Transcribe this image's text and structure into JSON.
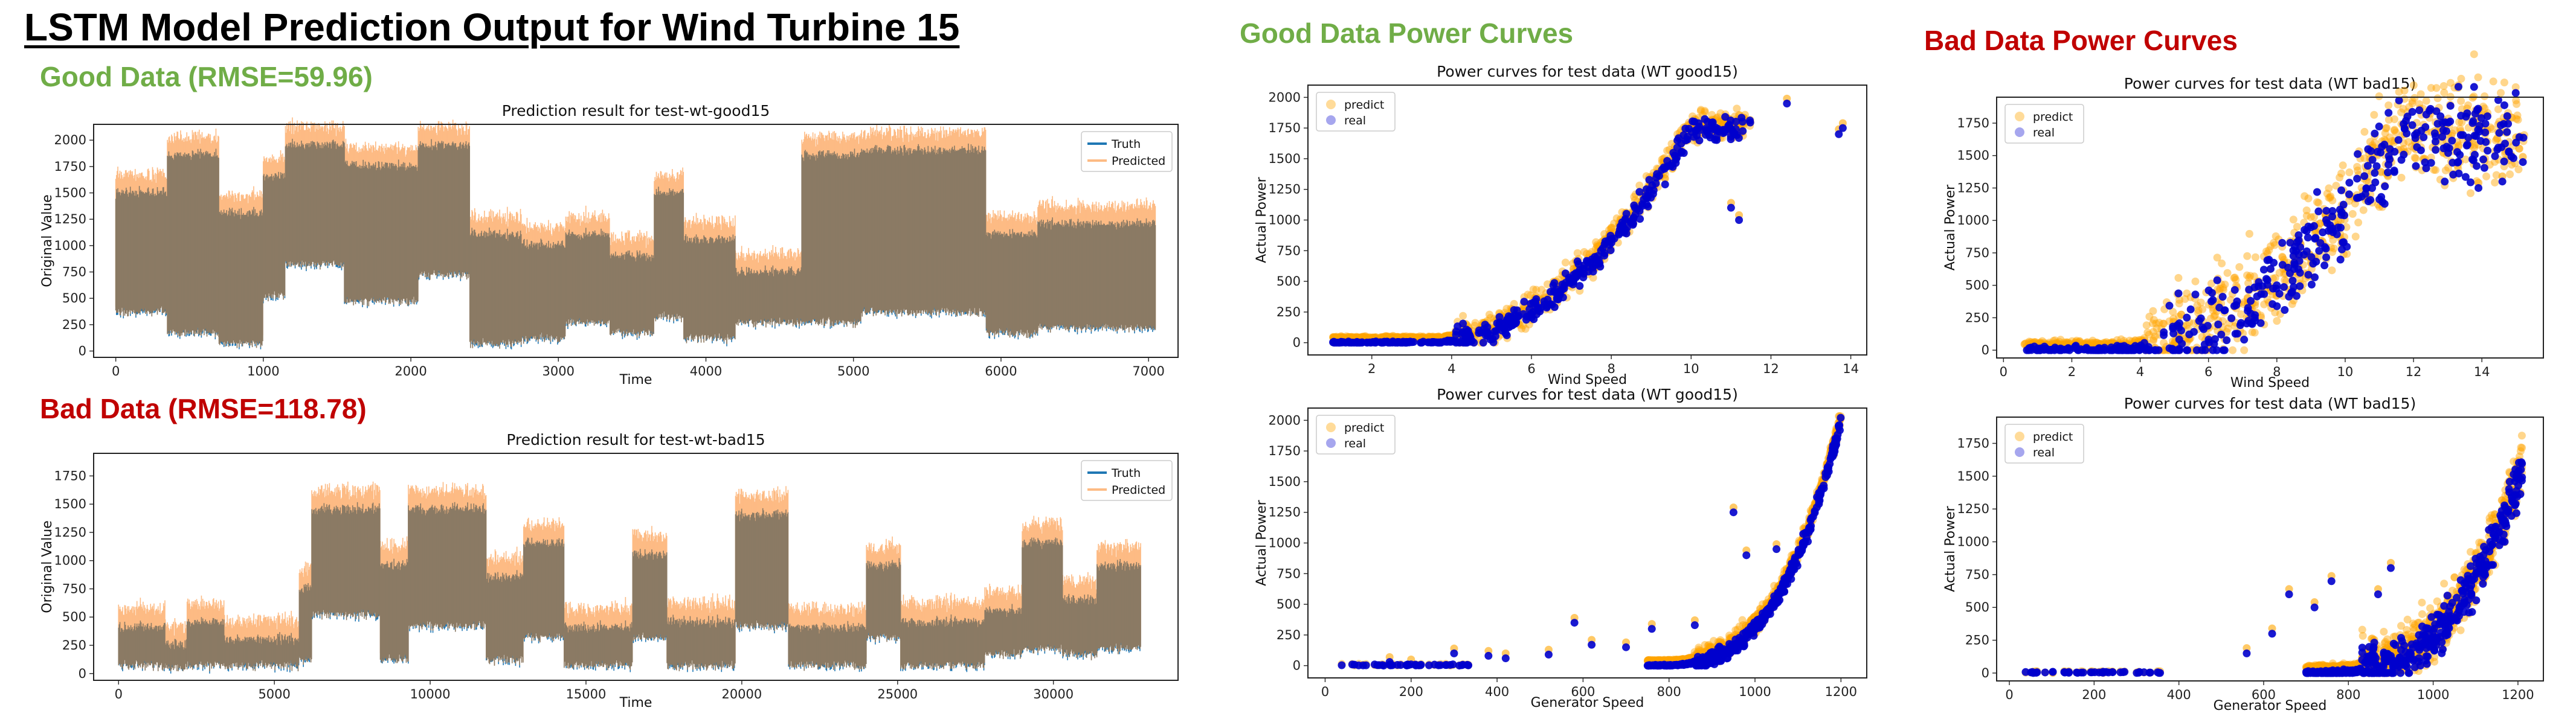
{
  "page": {
    "title": "LSTM Model Prediction Output for Wind Turbine 15",
    "good_label": "Good Data (RMSE=59.96)",
    "bad_label": "Bad Data (RMSE=118.78)",
    "good_curves_label": "Good Data Power Curves",
    "bad_curves_label": "Bad Data Power Curves"
  },
  "colors": {
    "good_green": "#70AD47",
    "bad_red": "#C00000",
    "truth": "#1f77b4",
    "predicted": "#ff7f0e",
    "predict_scatter": "#FFA500",
    "real_scatter": "#0000CD",
    "overlap": "#8B7A64"
  },
  "chart_data": [
    {
      "id": "ts_good",
      "type": "line",
      "title": "Prediction result for test-wt-good15",
      "xlabel": "Time",
      "ylabel": "Original Value",
      "xlim": [
        -150,
        7200
      ],
      "ylim": [
        -60,
        2150
      ],
      "xticks": [
        0,
        1000,
        2000,
        3000,
        4000,
        5000,
        6000,
        7000
      ],
      "yticks": [
        0,
        250,
        500,
        750,
        1000,
        1250,
        1500,
        1750,
        2000
      ],
      "legend": [
        "Truth",
        "Predicted"
      ],
      "legend_position": "top-right",
      "x_range": [
        0,
        7050
      ],
      "segments": [
        {
          "x": [
            0,
            350
          ],
          "low": 350,
          "high": 1550
        },
        {
          "x": [
            350,
            700
          ],
          "low": 150,
          "high": 1900
        },
        {
          "x": [
            700,
            1000
          ],
          "low": 50,
          "high": 1350
        },
        {
          "x": [
            1000,
            1150
          ],
          "low": 500,
          "high": 1700
        },
        {
          "x": [
            1150,
            1550
          ],
          "low": 800,
          "high": 2000
        },
        {
          "x": [
            1550,
            2050
          ],
          "low": 450,
          "high": 1800
        },
        {
          "x": [
            2050,
            2400
          ],
          "low": 700,
          "high": 2000
        },
        {
          "x": [
            2400,
            2750
          ],
          "low": 50,
          "high": 1150
        },
        {
          "x": [
            2750,
            3050
          ],
          "low": 100,
          "high": 1050
        },
        {
          "x": [
            3050,
            3350
          ],
          "low": 250,
          "high": 1150
        },
        {
          "x": [
            3350,
            3650
          ],
          "low": 150,
          "high": 950
        },
        {
          "x": [
            3650,
            3850
          ],
          "low": 300,
          "high": 1550
        },
        {
          "x": [
            3850,
            4200
          ],
          "low": 100,
          "high": 1100
        },
        {
          "x": [
            4200,
            4650
          ],
          "low": 250,
          "high": 800
        },
        {
          "x": [
            4650,
            5050
          ],
          "low": 250,
          "high": 1900
        },
        {
          "x": [
            5050,
            5900
          ],
          "low": 350,
          "high": 1950
        },
        {
          "x": [
            5900,
            6250
          ],
          "low": 150,
          "high": 1150
        },
        {
          "x": [
            6250,
            6750
          ],
          "low": 200,
          "high": 1250
        },
        {
          "x": [
            6750,
            7050
          ],
          "low": 200,
          "high": 1250
        }
      ]
    },
    {
      "id": "ts_bad",
      "type": "line",
      "title": "Prediction result for test-wt-bad15",
      "xlabel": "Time",
      "ylabel": "Original Value",
      "xlim": [
        -800,
        34000
      ],
      "ylim": [
        -60,
        1950
      ],
      "xticks": [
        0,
        5000,
        10000,
        15000,
        20000,
        25000,
        30000
      ],
      "yticks": [
        0,
        250,
        500,
        750,
        1000,
        1250,
        1500,
        1750
      ],
      "legend": [
        "Truth",
        "Predicted"
      ],
      "legend_position": "top-right",
      "x_range": [
        0,
        32800
      ],
      "segments": [
        {
          "x": [
            0,
            1500
          ],
          "low": 50,
          "high": 450
        },
        {
          "x": [
            1500,
            2200
          ],
          "low": 30,
          "high": 300
        },
        {
          "x": [
            2200,
            3400
          ],
          "low": 50,
          "high": 500
        },
        {
          "x": [
            3400,
            5800
          ],
          "low": 50,
          "high": 350
        },
        {
          "x": [
            5800,
            6200
          ],
          "low": 100,
          "high": 800
        },
        {
          "x": [
            6200,
            8400
          ],
          "low": 500,
          "high": 1500
        },
        {
          "x": [
            8400,
            9300
          ],
          "low": 100,
          "high": 1000
        },
        {
          "x": [
            9300,
            11800
          ],
          "low": 400,
          "high": 1500
        },
        {
          "x": [
            11800,
            13000
          ],
          "low": 100,
          "high": 900
        },
        {
          "x": [
            13000,
            14300
          ],
          "low": 300,
          "high": 1200
        },
        {
          "x": [
            14300,
            16500
          ],
          "low": 50,
          "high": 450
        },
        {
          "x": [
            16500,
            17600
          ],
          "low": 300,
          "high": 1100
        },
        {
          "x": [
            17600,
            19800
          ],
          "low": 50,
          "high": 500
        },
        {
          "x": [
            19800,
            21500
          ],
          "low": 400,
          "high": 1450
        },
        {
          "x": [
            21500,
            24000
          ],
          "low": 50,
          "high": 450
        },
        {
          "x": [
            24000,
            25100
          ],
          "low": 300,
          "high": 1000
        },
        {
          "x": [
            25100,
            27800
          ],
          "low": 50,
          "high": 500
        },
        {
          "x": [
            27800,
            29000
          ],
          "low": 150,
          "high": 600
        },
        {
          "x": [
            29000,
            30300
          ],
          "low": 200,
          "high": 1200
        },
        {
          "x": [
            30300,
            31400
          ],
          "low": 150,
          "high": 700
        },
        {
          "x": [
            31400,
            32800
          ],
          "low": 200,
          "high": 1000
        }
      ]
    },
    {
      "id": "pc_good_ws",
      "type": "scatter",
      "title": "Power curves for test data (WT good15)",
      "xlabel": "Wind Speed",
      "ylabel": "Actual Power",
      "xlim": [
        0.4,
        14.4
      ],
      "ylim": [
        -100,
        2100
      ],
      "xticks": [
        2,
        4,
        6,
        8,
        10,
        12,
        14
      ],
      "yticks": [
        0,
        250,
        500,
        750,
        1000,
        1250,
        1500,
        1750,
        2000
      ],
      "legend": [
        "predict",
        "real"
      ],
      "legend_position": "top-left",
      "curve": {
        "x_start": 1.0,
        "x_end": 11.5,
        "cut_in": 3.2,
        "x_rated": 10.0,
        "p_max": 1750,
        "spread": 150
      },
      "outliers": [
        [
          13.7,
          1700
        ],
        [
          13.8,
          1750
        ],
        [
          12.4,
          1950
        ],
        [
          11.2,
          1000
        ],
        [
          1.2,
          0
        ],
        [
          11.0,
          1100
        ]
      ]
    },
    {
      "id": "pc_bad_ws",
      "type": "scatter",
      "title": "Power curves for test data (WT bad15)",
      "xlabel": "Wind Speed",
      "ylabel": "Actual Power",
      "xlim": [
        -0.2,
        15.8
      ],
      "ylim": [
        -60,
        1950
      ],
      "xticks": [
        0,
        2,
        4,
        6,
        8,
        10,
        12,
        14
      ],
      "yticks": [
        0,
        250,
        500,
        750,
        1000,
        1250,
        1500,
        1750
      ],
      "legend": [
        "predict",
        "real"
      ],
      "legend_position": "top-left",
      "curve": {
        "x_start": 0.6,
        "x_end": 15.3,
        "cut_in": 3.0,
        "x_rated": 11.5,
        "p_max": 1650,
        "spread": 450
      },
      "outliers": [
        [
          15.2,
          1450
        ],
        [
          15.0,
          1600
        ],
        [
          14.6,
          1300
        ],
        [
          13.9,
          1250
        ]
      ]
    },
    {
      "id": "pc_good_gs",
      "type": "scatter",
      "title": "Power curves for test data (WT good15)",
      "xlabel": "Generator Speed",
      "ylabel": "Actual Power",
      "xlim": [
        -40,
        1260
      ],
      "ylim": [
        -100,
        2100
      ],
      "xticks": [
        0,
        200,
        400,
        600,
        800,
        1000,
        1200
      ],
      "yticks": [
        0,
        250,
        500,
        750,
        1000,
        1250,
        1500,
        1750,
        2000
      ],
      "legend": [
        "predict",
        "real"
      ],
      "legend_position": "top-left",
      "curve": {
        "x_start": 750,
        "x_end": 1200,
        "p_max": 2000,
        "spread": 90
      },
      "outliers": [
        [
          300,
          100
        ],
        [
          380,
          80
        ],
        [
          420,
          60
        ],
        [
          520,
          90
        ],
        [
          580,
          350
        ],
        [
          620,
          170
        ],
        [
          700,
          150
        ],
        [
          760,
          300
        ],
        [
          860,
          330
        ],
        [
          950,
          1250
        ],
        [
          980,
          900
        ],
        [
          1050,
          950
        ],
        [
          150,
          30
        ],
        [
          200,
          10
        ]
      ]
    },
    {
      "id": "pc_bad_gs",
      "type": "scatter",
      "title": "Power curves for test data (WT bad15)",
      "xlabel": "Generator Speed",
      "ylabel": "Actual Power",
      "xlim": [
        -30,
        1260
      ],
      "ylim": [
        -60,
        1950
      ],
      "xticks": [
        0,
        200,
        400,
        600,
        800,
        1000,
        1200
      ],
      "yticks": [
        0,
        250,
        500,
        750,
        1000,
        1250,
        1500,
        1750
      ],
      "legend": [
        "predict",
        "real"
      ],
      "legend_position": "top-left",
      "curve": {
        "x_start": 700,
        "x_end": 1210,
        "p_max": 1550,
        "spread": 250
      },
      "outliers": [
        [
          660,
          600
        ],
        [
          760,
          700
        ],
        [
          720,
          500
        ],
        [
          900,
          800
        ],
        [
          870,
          600
        ],
        [
          560,
          150
        ],
        [
          620,
          300
        ],
        [
          860,
          60
        ]
      ]
    }
  ]
}
